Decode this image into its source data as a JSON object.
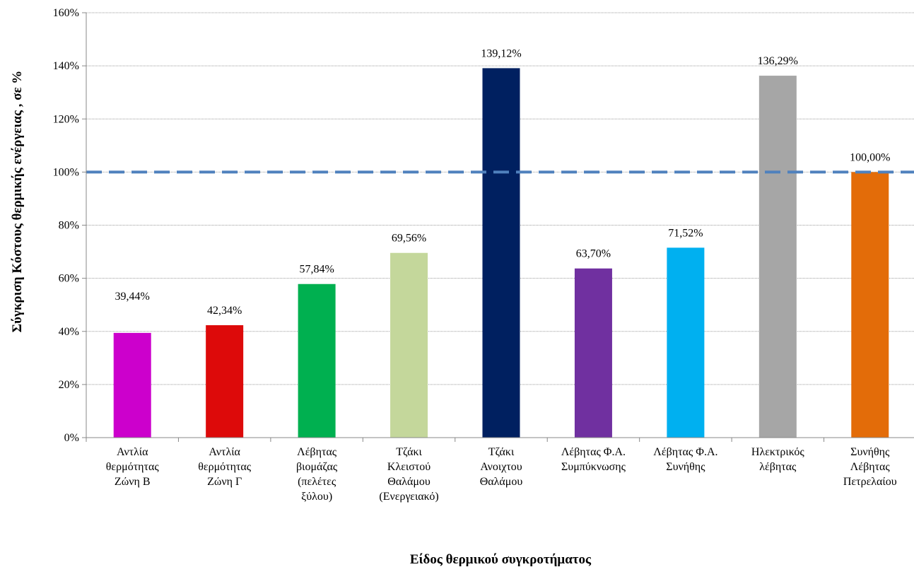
{
  "chart_data": {
    "type": "bar",
    "categories": [
      [
        "Αντλία",
        "θερμότητας",
        "Ζώνη Β"
      ],
      [
        "Αντλία",
        "θερμότητας",
        "Ζώνη Γ"
      ],
      [
        "Λέβητας",
        "βιομάζας",
        "(πελέτες",
        "ξύλου)"
      ],
      [
        "Τζάκι",
        "Κλειστού",
        "Θαλάμου",
        "(Ενεργειακό)"
      ],
      [
        "Τζάκι",
        "Ανοιχτου",
        "Θαλάμου"
      ],
      [
        "Λέβητας Φ.Α.",
        "Συμπύκνωσης"
      ],
      [
        "Λέβητας Φ.Α.",
        "Συνήθης"
      ],
      [
        "Ηλεκτρικός",
        "λέβητας"
      ],
      [
        "Συνήθης",
        "Λέβητας",
        "Πετρελαίου"
      ]
    ],
    "values": [
      39.44,
      42.34,
      57.84,
      69.56,
      139.12,
      63.7,
      71.52,
      136.29,
      100.0
    ],
    "data_labels": [
      "39,44%",
      "42,34%",
      "57,84%",
      "69,56%",
      "139,12%",
      "63,70%",
      "71,52%",
      "136,29%",
      "100,00%"
    ],
    "colors": [
      "#CC00CC",
      "#DD0A0A",
      "#00B050",
      "#C4D79B",
      "#002060",
      "#7030A0",
      "#00B0F0",
      "#A6A6A6",
      "#E36C09"
    ],
    "xlabel": "Είδος θερμικού συγκροτήματος",
    "ylabel": "Σύγκριση Κόστους θερμικής ενέργειας , σε %",
    "ylim": [
      0,
      160
    ],
    "yticks": [
      "0%",
      "20%",
      "40%",
      "60%",
      "80%",
      "100%",
      "120%",
      "140%",
      "160%"
    ],
    "reference_line": {
      "value": 100,
      "style": "dashed",
      "color": "#4F81BD"
    },
    "grid": true,
    "legend": "none"
  }
}
